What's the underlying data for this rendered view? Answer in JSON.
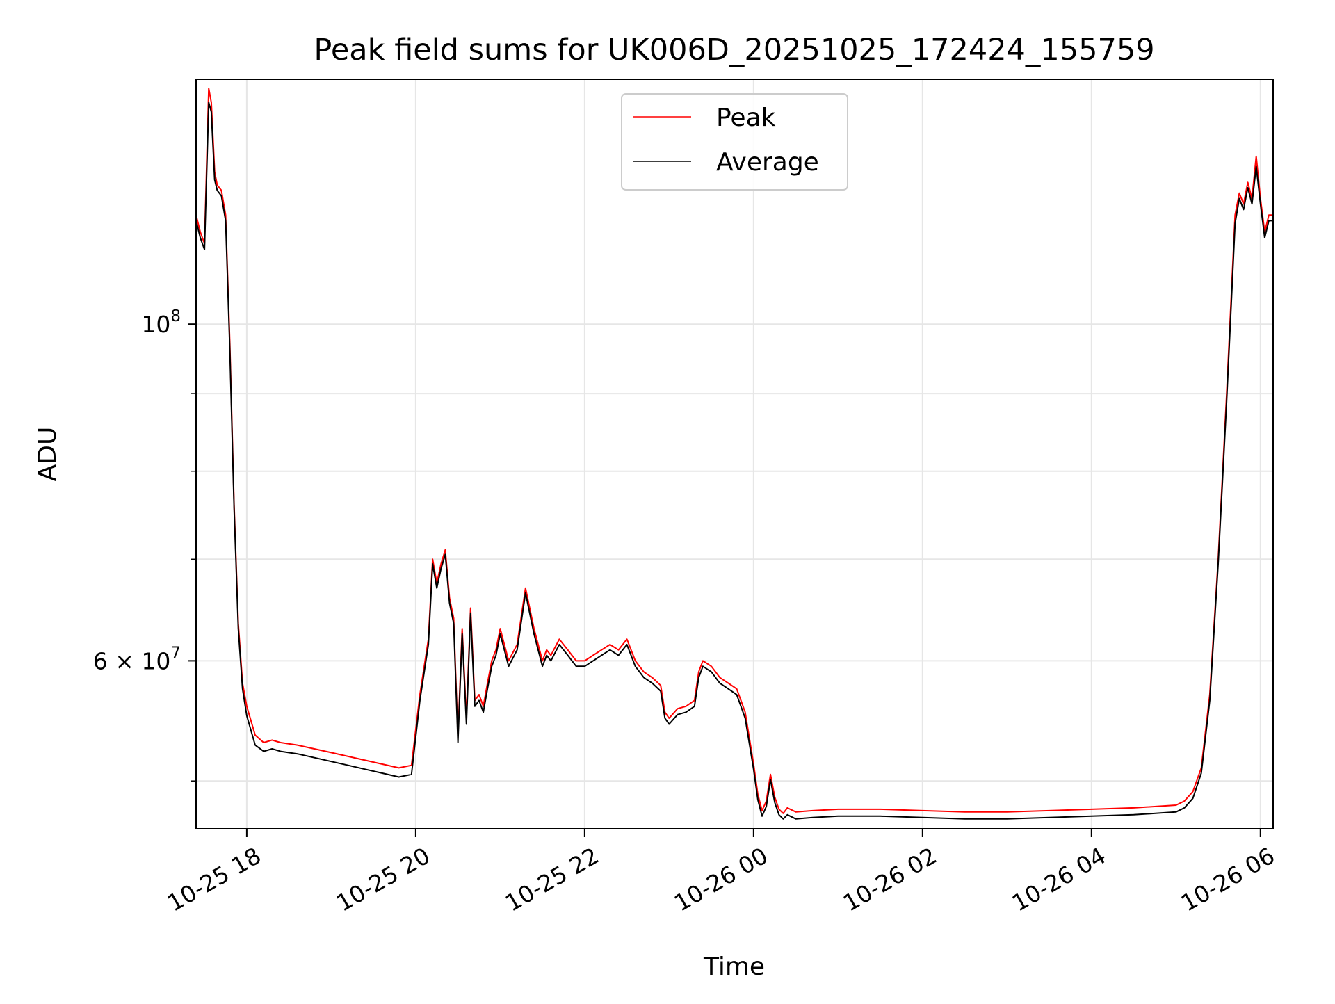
{
  "chart_data": {
    "type": "line",
    "title": "Peak field sums for UK006D_20251025_172424_155759",
    "xlabel": "Time",
    "ylabel": "ADU",
    "yscale": "log",
    "ylim": [
      46500000,
      145000000
    ],
    "xlim_hours": [
      17.4,
      30.15
    ],
    "x_unit": "hours since 2025-10-25 00:00",
    "grid": true,
    "legend_position": "top-center",
    "x_ticks": [
      {
        "value": 18,
        "label": "10-25 18"
      },
      {
        "value": 20,
        "label": "10-25 20"
      },
      {
        "value": 22,
        "label": "10-25 22"
      },
      {
        "value": 24,
        "label": "10-26 00"
      },
      {
        "value": 26,
        "label": "10-26 02"
      },
      {
        "value": 28,
        "label": "10-26 04"
      },
      {
        "value": 30,
        "label": "10-26 06"
      }
    ],
    "y_major_ticks": [
      {
        "value": 100000000,
        "base": "10",
        "exponent": "8"
      },
      {
        "value": 60000000,
        "base": "6 × 10",
        "exponent": "7"
      }
    ],
    "y_minor_ticks": [
      50000000,
      70000000,
      80000000,
      90000000
    ],
    "series": [
      {
        "name": "Peak",
        "color": "#ff0000",
        "x": [
          17.4,
          17.45,
          17.5,
          17.55,
          17.58,
          17.62,
          17.65,
          17.7,
          17.75,
          17.8,
          17.85,
          17.9,
          17.95,
          18.0,
          18.1,
          18.2,
          18.3,
          18.4,
          18.6,
          18.8,
          19.0,
          19.2,
          19.4,
          19.6,
          19.8,
          19.95,
          20.05,
          20.15,
          20.2,
          20.25,
          20.3,
          20.35,
          20.4,
          20.45,
          20.5,
          20.55,
          20.6,
          20.65,
          20.7,
          20.75,
          20.8,
          20.85,
          20.9,
          20.95,
          21.0,
          21.1,
          21.2,
          21.3,
          21.4,
          21.5,
          21.55,
          21.6,
          21.7,
          21.8,
          21.85,
          21.9,
          22.0,
          22.1,
          22.2,
          22.3,
          22.4,
          22.5,
          22.6,
          22.7,
          22.8,
          22.9,
          22.95,
          23.0,
          23.1,
          23.2,
          23.3,
          23.35,
          23.4,
          23.5,
          23.6,
          23.7,
          23.8,
          23.85,
          23.9,
          24.0,
          24.05,
          24.1,
          24.15,
          24.2,
          24.25,
          24.3,
          24.35,
          24.4,
          24.5,
          24.7,
          25.0,
          25.5,
          26.0,
          26.5,
          27.0,
          27.5,
          28.0,
          28.5,
          29.0,
          29.1,
          29.2,
          29.3,
          29.4,
          29.5,
          29.6,
          29.7,
          29.75,
          29.8,
          29.85,
          29.9,
          29.95,
          30.0,
          30.05,
          30.1,
          30.15
        ],
        "values": [
          118000000,
          115000000,
          113000000,
          143000000,
          140000000,
          126000000,
          123500000,
          122500000,
          118000000,
          97000000,
          76000000,
          63500000,
          58000000,
          56000000,
          53600000,
          53000000,
          53200000,
          53000000,
          52800000,
          52500000,
          52200000,
          51900000,
          51600000,
          51300000,
          51000000,
          51200000,
          57000000,
          62000000,
          70000000,
          67500000,
          69500000,
          71000000,
          66000000,
          64000000,
          53500000,
          63000000,
          55000000,
          65000000,
          56500000,
          57000000,
          56000000,
          58000000,
          60000000,
          61000000,
          63000000,
          60000000,
          61500000,
          67000000,
          63000000,
          60000000,
          61000000,
          60500000,
          62000000,
          61000000,
          60500000,
          60000000,
          60000000,
          60500000,
          61000000,
          61500000,
          61000000,
          62000000,
          60000000,
          59000000,
          58500000,
          57800000,
          55500000,
          55000000,
          55800000,
          56000000,
          56500000,
          59000000,
          60000000,
          59500000,
          58500000,
          58000000,
          57500000,
          56500000,
          55500000,
          51300000,
          49000000,
          47800000,
          48500000,
          50500000,
          48800000,
          47900000,
          47600000,
          48000000,
          47700000,
          47800000,
          47900000,
          47900000,
          47800000,
          47700000,
          47700000,
          47800000,
          47900000,
          48000000,
          48200000,
          48500000,
          49200000,
          51000000,
          57000000,
          70000000,
          90000000,
          118000000,
          122000000,
          120000000,
          124000000,
          121000000,
          129000000,
          121000000,
          115000000,
          118000000,
          118000000
        ]
      },
      {
        "name": "Average",
        "color": "#000000",
        "x": [
          17.4,
          17.45,
          17.5,
          17.55,
          17.58,
          17.62,
          17.65,
          17.7,
          17.75,
          17.8,
          17.85,
          17.9,
          17.95,
          18.0,
          18.1,
          18.2,
          18.3,
          18.4,
          18.6,
          18.8,
          19.0,
          19.2,
          19.4,
          19.6,
          19.8,
          19.95,
          20.05,
          20.15,
          20.2,
          20.25,
          20.3,
          20.35,
          20.4,
          20.45,
          20.5,
          20.55,
          20.6,
          20.65,
          20.7,
          20.75,
          20.8,
          20.85,
          20.9,
          20.95,
          21.0,
          21.1,
          21.2,
          21.3,
          21.4,
          21.5,
          21.55,
          21.6,
          21.7,
          21.8,
          21.85,
          21.9,
          22.0,
          22.1,
          22.2,
          22.3,
          22.4,
          22.5,
          22.6,
          22.7,
          22.8,
          22.9,
          22.95,
          23.0,
          23.1,
          23.2,
          23.3,
          23.35,
          23.4,
          23.5,
          23.6,
          23.7,
          23.8,
          23.85,
          23.9,
          24.0,
          24.05,
          24.1,
          24.15,
          24.2,
          24.25,
          24.3,
          24.35,
          24.4,
          24.5,
          24.7,
          25.0,
          25.5,
          26.0,
          26.5,
          27.0,
          27.5,
          28.0,
          28.5,
          29.0,
          29.1,
          29.2,
          29.3,
          29.4,
          29.5,
          29.6,
          29.7,
          29.75,
          29.8,
          29.85,
          29.9,
          29.95,
          30.0,
          30.05,
          30.1,
          30.15
        ],
        "values": [
          117000000,
          114000000,
          112000000,
          140000000,
          138000000,
          124500000,
          122500000,
          121500000,
          117000000,
          96000000,
          75500000,
          63000000,
          57500000,
          55200000,
          52800000,
          52300000,
          52500000,
          52300000,
          52100000,
          51800000,
          51500000,
          51200000,
          50900000,
          50600000,
          50300000,
          50500000,
          56500000,
          61500000,
          69500000,
          67000000,
          69000000,
          70500000,
          65500000,
          63500000,
          53000000,
          62500000,
          54500000,
          64500000,
          56000000,
          56500000,
          55500000,
          57500000,
          59500000,
          60500000,
          62500000,
          59500000,
          61000000,
          66500000,
          62500000,
          59500000,
          60500000,
          60000000,
          61500000,
          60500000,
          60000000,
          59500000,
          59500000,
          60000000,
          60500000,
          61000000,
          60500000,
          61500000,
          59500000,
          58500000,
          58000000,
          57300000,
          55000000,
          54500000,
          55300000,
          55500000,
          56000000,
          58500000,
          59500000,
          59000000,
          58000000,
          57500000,
          57000000,
          56000000,
          55000000,
          50900000,
          48600000,
          47400000,
          48100000,
          50100000,
          48400000,
          47500000,
          47200000,
          47500000,
          47200000,
          47300000,
          47400000,
          47400000,
          47300000,
          47200000,
          47200000,
          47300000,
          47400000,
          47500000,
          47700000,
          48000000,
          48700000,
          50600000,
          56500000,
          69500000,
          89000000,
          116500000,
          121000000,
          119000000,
          123000000,
          120000000,
          127000000,
          120000000,
          114000000,
          117000000,
          117000000
        ]
      }
    ]
  }
}
